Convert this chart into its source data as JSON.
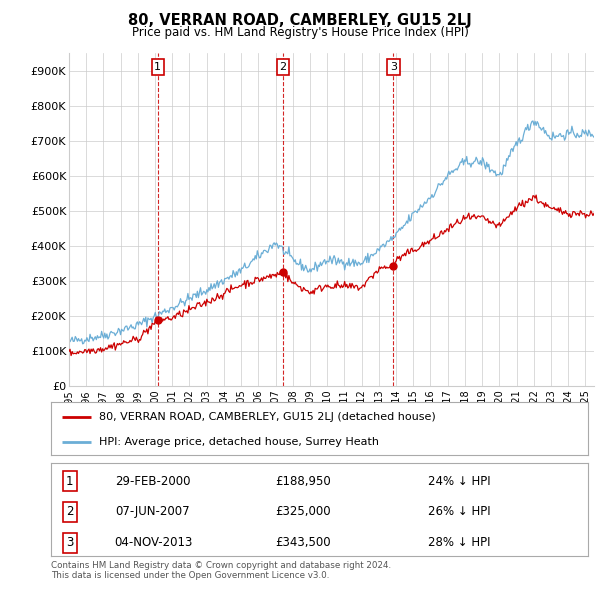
{
  "title": "80, VERRAN ROAD, CAMBERLEY, GU15 2LJ",
  "subtitle": "Price paid vs. HM Land Registry's House Price Index (HPI)",
  "ylabel_ticks": [
    "£0",
    "£100K",
    "£200K",
    "£300K",
    "£400K",
    "£500K",
    "£600K",
    "£700K",
    "£800K",
    "£900K"
  ],
  "ytick_vals": [
    0,
    100000,
    200000,
    300000,
    400000,
    500000,
    600000,
    700000,
    800000,
    900000
  ],
  "ylim": [
    0,
    950000
  ],
  "xlim_start": 1995.0,
  "xlim_end": 2025.5,
  "purchases": [
    {
      "label": "1",
      "date_num": 2000.16,
      "price": 188950
    },
    {
      "label": "2",
      "date_num": 2007.43,
      "price": 325000
    },
    {
      "label": "3",
      "date_num": 2013.84,
      "price": 343500
    }
  ],
  "vline_color": "#cc0000",
  "hpi_color": "#6baed6",
  "price_color": "#cc0000",
  "legend_label_price": "80, VERRAN ROAD, CAMBERLEY, GU15 2LJ (detached house)",
  "legend_label_hpi": "HPI: Average price, detached house, Surrey Heath",
  "table_rows": [
    {
      "num": "1",
      "date": "29-FEB-2000",
      "price": "£188,950",
      "pct": "24% ↓ HPI"
    },
    {
      "num": "2",
      "date": "07-JUN-2007",
      "price": "£325,000",
      "pct": "26% ↓ HPI"
    },
    {
      "num": "3",
      "date": "04-NOV-2013",
      "price": "£343,500",
      "pct": "28% ↓ HPI"
    }
  ],
  "footnote": "Contains HM Land Registry data © Crown copyright and database right 2024.\nThis data is licensed under the Open Government Licence v3.0.",
  "bg_color": "#ffffff",
  "grid_color": "#cccccc",
  "xtick_years": [
    1995,
    1996,
    1997,
    1998,
    1999,
    2000,
    2001,
    2002,
    2003,
    2004,
    2005,
    2006,
    2007,
    2008,
    2009,
    2010,
    2011,
    2012,
    2013,
    2014,
    2015,
    2016,
    2017,
    2018,
    2019,
    2020,
    2021,
    2022,
    2023,
    2024,
    2025
  ]
}
